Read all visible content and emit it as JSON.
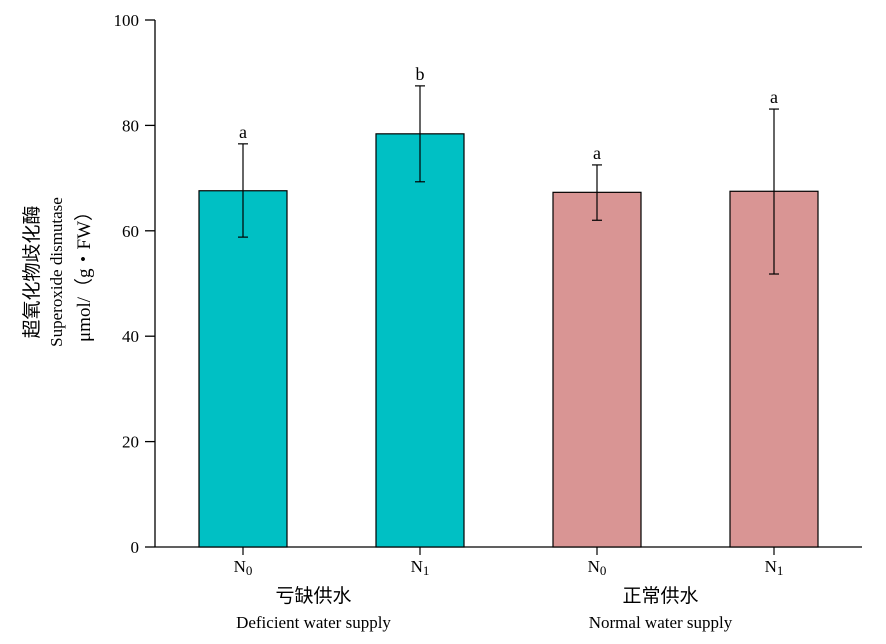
{
  "chart_data": {
    "type": "bar",
    "y_axis": {
      "min": 0,
      "max": 100,
      "ticks": [
        "0",
        "20",
        "40",
        "60",
        "80",
        "100"
      ],
      "label_lines": [
        "超氧化物歧化酶",
        "Superoxide dismutase",
        "μmol/（g・FW）"
      ]
    },
    "bars": [
      {
        "category": "N0",
        "group": "亏缺供水",
        "value": 67.6,
        "error_low": 58.8,
        "error_high": 76.5,
        "letter": "a",
        "color": "#00C0C4"
      },
      {
        "category": "N1",
        "group": "亏缺供水",
        "value": 78.4,
        "error_low": 69.3,
        "error_high": 87.5,
        "letter": "b",
        "color": "#00C0C4"
      },
      {
        "category": "N0",
        "group": "正常供水",
        "value": 67.3,
        "error_low": 62.0,
        "error_high": 72.5,
        "letter": "a",
        "color": "#D99594"
      },
      {
        "category": "N1",
        "group": "正常供水",
        "value": 67.5,
        "error_low": 51.8,
        "error_high": 83.1,
        "letter": "a",
        "color": "#D99594"
      }
    ],
    "groups": [
      {
        "label_cn": "亏缺供水",
        "label_en": "Deficient water supply"
      },
      {
        "label_cn": "正常供水",
        "label_en": "Normal water supply"
      }
    ]
  }
}
